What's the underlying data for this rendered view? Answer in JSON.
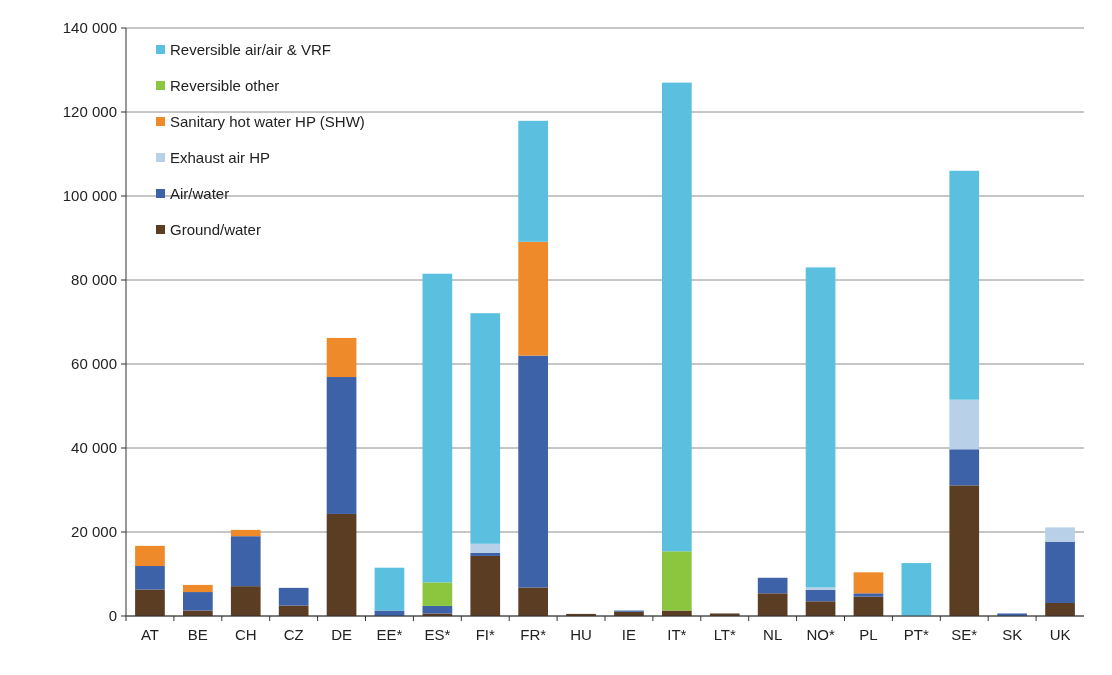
{
  "chart_data": {
    "type": "bar",
    "stacked": true,
    "categories": [
      "AT",
      "BE",
      "CH",
      "CZ",
      "DE",
      "EE*",
      "ES*",
      "FI*",
      "FR*",
      "HU",
      "IE",
      "IT*",
      "LT*",
      "NL",
      "NO*",
      "PL",
      "PT*",
      "SE*",
      "SK",
      "UK"
    ],
    "series": [
      {
        "name": "Ground/water",
        "color": "#5a3d22",
        "values": [
          6300,
          1300,
          7100,
          2500,
          24300,
          null,
          600,
          14300,
          6800,
          500,
          1000,
          1300,
          600,
          5400,
          3500,
          4600,
          0,
          31100,
          0,
          3100
        ]
      },
      {
        "name": "Air/water",
        "color": "#3e62a8",
        "values": [
          5600,
          4400,
          11900,
          4200,
          32600,
          1300,
          1800,
          700,
          55200,
          0,
          300,
          0,
          0,
          3700,
          2700,
          800,
          0,
          8600,
          600,
          14600
        ]
      },
      {
        "name": "Exhaust air HP",
        "color": "#b8d0e8",
        "values": [
          0,
          0,
          0,
          0,
          0,
          0,
          0,
          2200,
          0,
          0,
          0,
          0,
          0,
          0,
          600,
          0,
          0,
          11800,
          0,
          3400
        ]
      },
      {
        "name": "Sanitary hot water HP (SHW)",
        "color": "#ee8a2a",
        "values": [
          4800,
          1700,
          1500,
          0,
          9300,
          0,
          0,
          0,
          27100,
          0,
          0,
          0,
          0,
          0,
          0,
          5000,
          null,
          0,
          0,
          0
        ]
      },
      {
        "name": "Reversible other",
        "color": "#8cc63f",
        "values": [
          0,
          0,
          0,
          0,
          0,
          0,
          5600,
          0,
          0,
          0,
          0,
          14100,
          0,
          0,
          0,
          0,
          0,
          0,
          0,
          0
        ]
      },
      {
        "name": "Reversible air/air & VRF",
        "color": "#5bc0e0",
        "values": [
          0,
          0,
          0,
          0,
          0,
          10200,
          73500,
          54900,
          28800,
          0,
          0,
          111600,
          0,
          0,
          76200,
          0,
          12600,
          54500,
          0,
          0
        ]
      }
    ],
    "ylim": [
      0,
      140000
    ],
    "yticks": [
      {
        "value": 0,
        "label": "0"
      },
      {
        "value": 20000,
        "label": "20 000"
      },
      {
        "value": 40000,
        "label": "40 000"
      },
      {
        "value": 60000,
        "label": "60 000"
      },
      {
        "value": 80000,
        "label": "80 000"
      },
      {
        "value": 100000,
        "label": "100 000"
      },
      {
        "value": 120000,
        "label": "120 000"
      },
      {
        "value": 140000,
        "label": "140 000"
      }
    ],
    "grid": "y",
    "legend": "top left"
  }
}
